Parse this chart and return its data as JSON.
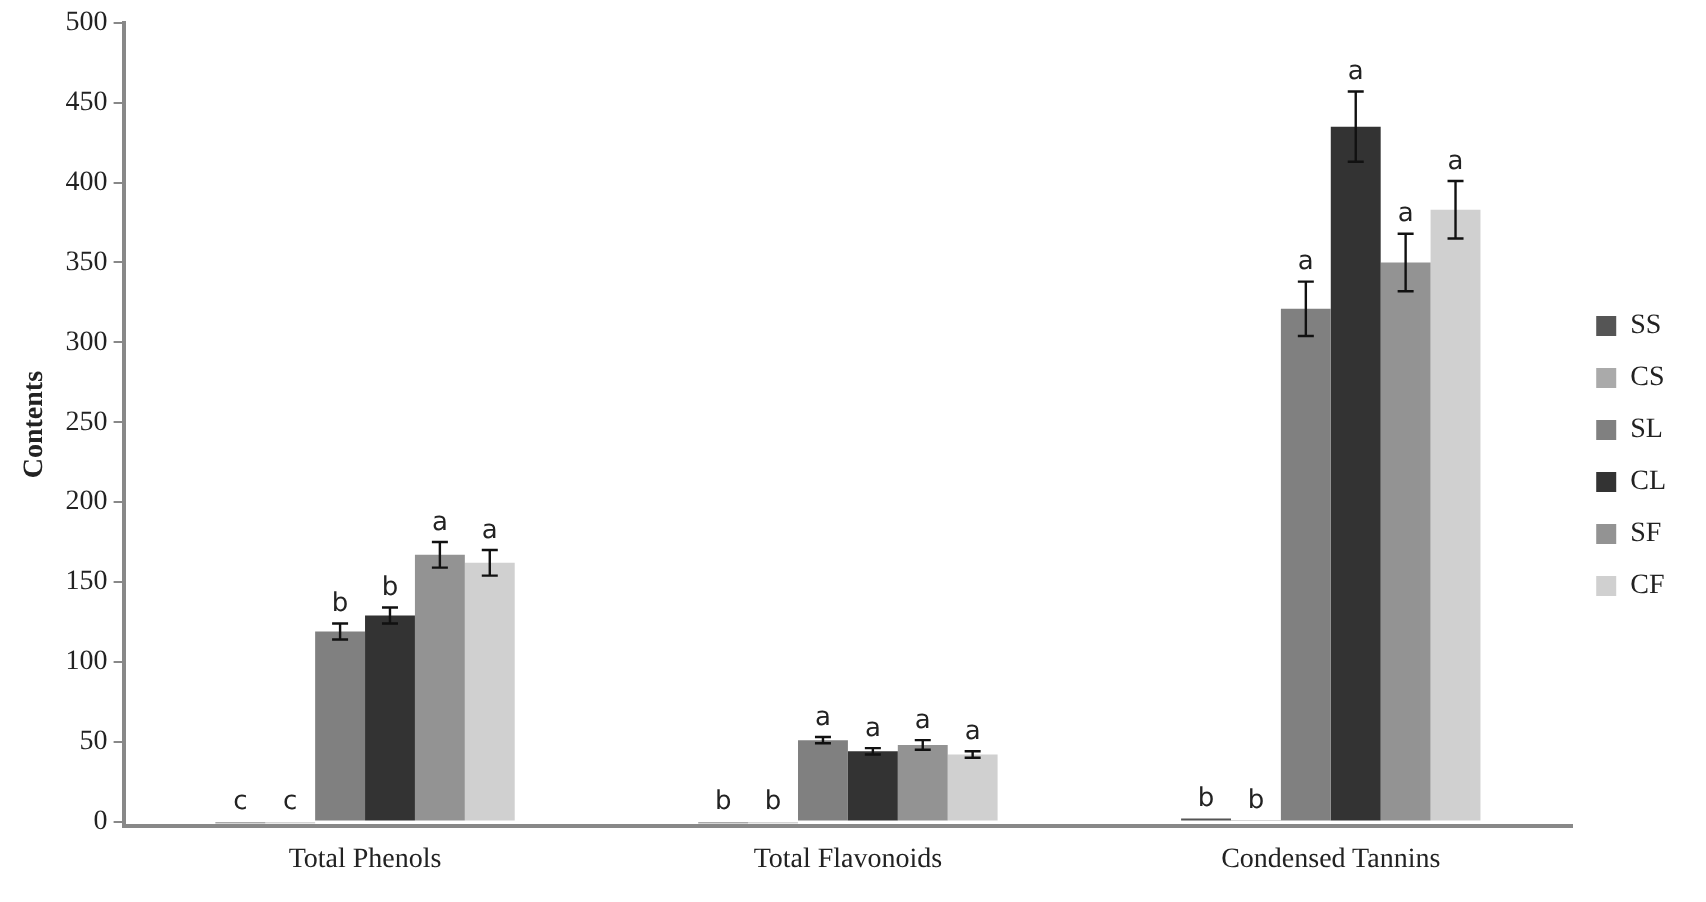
{
  "chart_data": {
    "type": "bar",
    "ylabel": "Contents",
    "categories": [
      "Total Phenols",
      "Total Flavonoids",
      "Condensed Tannins"
    ],
    "ylim": [
      -3,
      500
    ],
    "yticks": [
      0,
      50,
      100,
      150,
      200,
      250,
      300,
      350,
      400,
      450,
      500
    ],
    "grid": false,
    "legend": "right",
    "series": [
      {
        "name": "SS",
        "color": "#555555",
        "values": [
          -1,
          -1,
          2
        ],
        "value_labels": [
          "c",
          "b",
          "b"
        ]
      },
      {
        "name": "CS",
        "color": "#aaaaaa",
        "values": [
          -1,
          -1,
          1
        ],
        "value_labels": [
          "c",
          "b",
          "b"
        ]
      },
      {
        "name": "SL",
        "color": "#808080",
        "values": [
          119,
          51,
          321
        ],
        "errors": [
          5,
          2,
          17
        ],
        "value_labels": [
          "b",
          "a",
          "a"
        ]
      },
      {
        "name": "CL",
        "color": "#333333",
        "values": [
          129,
          44,
          435
        ],
        "errors": [
          5,
          2,
          22
        ],
        "value_labels": [
          "b",
          "a",
          "a"
        ]
      },
      {
        "name": "SF",
        "color": "#939393",
        "values": [
          167,
          48,
          350
        ],
        "errors": [
          8,
          3,
          18
        ],
        "value_labels": [
          "a",
          "a",
          "a"
        ]
      },
      {
        "name": "CF",
        "color": "#d0d0d0",
        "values": [
          162,
          42,
          383
        ],
        "errors": [
          8,
          2,
          18
        ],
        "value_labels": [
          "a",
          "a",
          "a"
        ]
      }
    ]
  }
}
